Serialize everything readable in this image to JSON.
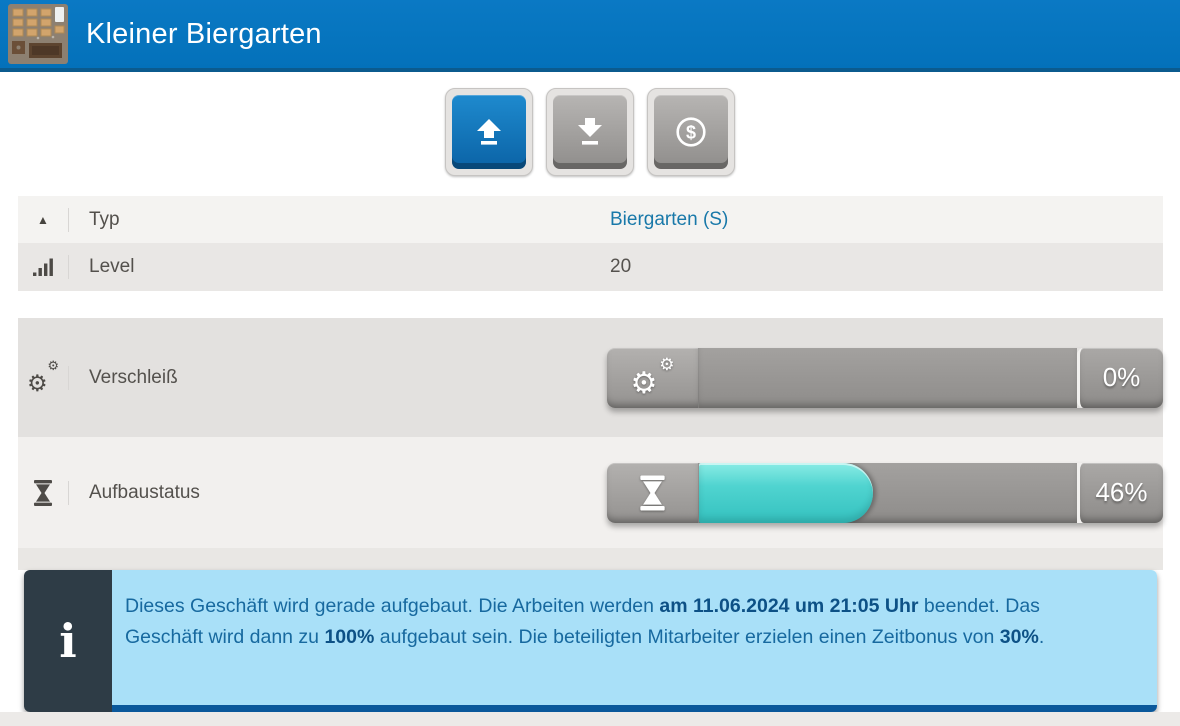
{
  "header": {
    "title": "Kleiner Biergarten",
    "icon": "beergarten-icon",
    "bg_color": "#0575bf",
    "border_color": "#0b5b8e"
  },
  "toolbar": {
    "buttons": [
      {
        "id": "upgrade",
        "icon": "upload-icon",
        "enabled": true
      },
      {
        "id": "downgrade",
        "icon": "download-icon",
        "enabled": false
      },
      {
        "id": "sell",
        "icon": "dollar-icon",
        "enabled": false,
        "dollar_glyph": "$"
      }
    ]
  },
  "properties": {
    "rows": [
      {
        "icon": "sort-up-icon",
        "label": "Typ",
        "value": "Biergarten (S)",
        "link": true
      },
      {
        "icon": "signal-bars-icon",
        "label": "Level",
        "value": "20",
        "link": false
      }
    ]
  },
  "progress": {
    "rows": [
      {
        "icon": "gears-icon",
        "label": "Verschleiß",
        "percent": 0,
        "percent_label": "0%"
      },
      {
        "icon": "hourglass-icon",
        "label": "Aufbaustatus",
        "percent": 46,
        "percent_label": "46%",
        "fill_color": "#40c8c6"
      }
    ]
  },
  "info": {
    "icon": "info-icon",
    "segments": [
      {
        "text": "Dieses Geschäft wird gerade aufgebaut. Die Arbeiten werden "
      },
      {
        "text": "am 11.06.2024 um 21:05 Uhr"
      },
      {
        "text": " beendet. Das Geschäft wird dann zu "
      },
      {
        "text": "100%"
      },
      {
        "text": " aufgebaut sein. Die beteiligten Mitarbeiter erzielen einen Zeitbonus von "
      },
      {
        "text": "30%"
      },
      {
        "text": "."
      }
    ]
  },
  "colors": {
    "link_blue": "#1878a9",
    "teal_fill": "#40c8c6",
    "info_bg": "#a9e0f8",
    "info_panel": "#2e3c46",
    "info_border": "#0a589b",
    "info_text": "#17699f",
    "info_text_bold": "#0d5186"
  },
  "glyphs": {
    "gear": "⚙",
    "sort_up": "▲"
  }
}
